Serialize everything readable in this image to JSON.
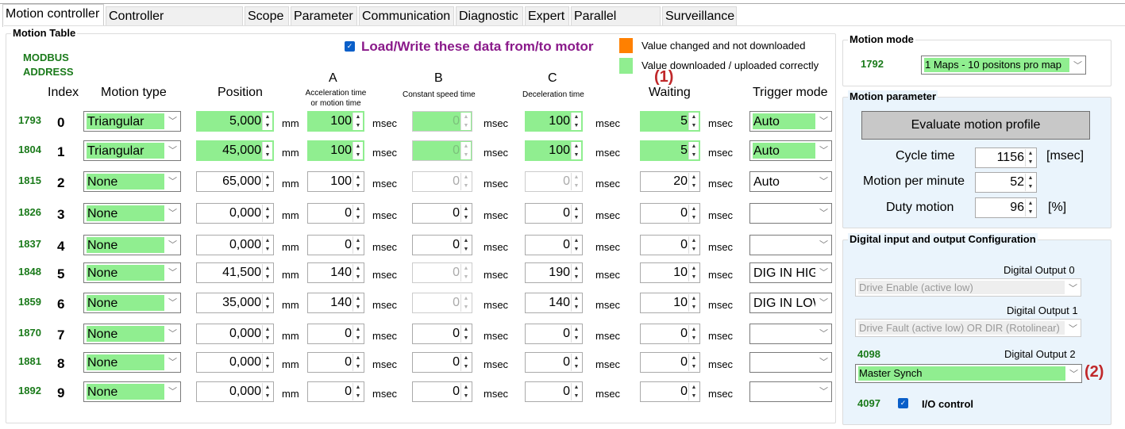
{
  "tabs": [
    "Motion controller",
    "Controller configuration",
    "Scope",
    "Parameter",
    "Communication",
    "Diagnostic",
    "Expert",
    "Parallel Motion",
    "Surveillance"
  ],
  "active_tab": "Motion controller",
  "motion_table": {
    "title": "Motion Table",
    "load_write_label": "Load/Write these data from/to motor",
    "load_write_checked": true,
    "legend": [
      {
        "color": "#ff8000",
        "label": "Value changed and not downloaded"
      },
      {
        "color": "#90ee90",
        "label": "Value downloaded / uploaded correctly"
      }
    ],
    "modbus_line1": "MODBUS",
    "modbus_line2": "ADDRESS",
    "headers": {
      "index": "Index",
      "motion_type": "Motion type",
      "position": "Position",
      "a": "A",
      "a_sub1": "Acceleration time",
      "a_sub2": "or motion time",
      "b": "B",
      "b_sub": "Constant speed time",
      "c": "C",
      "c_sub": "Deceleration time",
      "waiting": "Waiting",
      "trigger": "Trigger mode"
    },
    "annotation1": "(1)",
    "units": {
      "mm": "mm",
      "msec": "msec"
    },
    "rows": [
      {
        "addr": "1793",
        "index": "0",
        "type": "Triangular",
        "pos": "5,000",
        "a": "100",
        "b": "0",
        "c": "100",
        "w": "5",
        "trig": "Auto",
        "green": true,
        "b_dis": true,
        "c_dis": false
      },
      {
        "addr": "1804",
        "index": "1",
        "type": "Triangular",
        "pos": "45,000",
        "a": "100",
        "b": "0",
        "c": "100",
        "w": "5",
        "trig": "Auto",
        "green": true,
        "b_dis": true,
        "c_dis": false
      },
      {
        "addr": "1815",
        "index": "2",
        "type": "None",
        "pos": "65,000",
        "a": "100",
        "b": "0",
        "c": "0",
        "w": "20",
        "trig": "Auto",
        "green": false,
        "b_dis": true,
        "c_dis": true
      },
      {
        "addr": "1826",
        "index": "3",
        "type": "None",
        "pos": "0,000",
        "a": "0",
        "b": "0",
        "c": "0",
        "w": "0",
        "trig": "",
        "green": false,
        "b_dis": false,
        "c_dis": false
      },
      {
        "addr": "1837",
        "index": "4",
        "type": "None",
        "pos": "0,000",
        "a": "0",
        "b": "0",
        "c": "0",
        "w": "0",
        "trig": "",
        "green": false,
        "b_dis": false,
        "c_dis": false
      },
      {
        "addr": "1848",
        "index": "5",
        "type": "None",
        "pos": "41,500",
        "a": "140",
        "b": "0",
        "c": "190",
        "w": "10",
        "trig": "DIG IN HIGH",
        "green": false,
        "b_dis": true,
        "c_dis": false
      },
      {
        "addr": "1859",
        "index": "6",
        "type": "None",
        "pos": "35,000",
        "a": "140",
        "b": "0",
        "c": "140",
        "w": "10",
        "trig": "DIG IN LOW",
        "green": false,
        "b_dis": true,
        "c_dis": false
      },
      {
        "addr": "1870",
        "index": "7",
        "type": "None",
        "pos": "0,000",
        "a": "0",
        "b": "0",
        "c": "0",
        "w": "0",
        "trig": "",
        "green": false,
        "b_dis": false,
        "c_dis": false
      },
      {
        "addr": "1881",
        "index": "8",
        "type": "None",
        "pos": "0,000",
        "a": "0",
        "b": "0",
        "c": "0",
        "w": "0",
        "trig": "",
        "green": false,
        "b_dis": false,
        "c_dis": false
      },
      {
        "addr": "1892",
        "index": "9",
        "type": "None",
        "pos": "0,000",
        "a": "0",
        "b": "0",
        "c": "0",
        "w": "0",
        "trig": "",
        "green": false,
        "b_dis": false,
        "c_dis": false
      }
    ]
  },
  "motion_mode": {
    "title": "Motion mode",
    "addr": "1792",
    "value": "1 Maps - 10 positons pro map"
  },
  "motion_parameter": {
    "title": "Motion parameter",
    "evaluate_button": "Evaluate motion profile",
    "cycle_label": "Cycle time",
    "cycle_value": "1156",
    "cycle_unit": "[msec]",
    "mpm_label": "Motion per minute",
    "mpm_value": "52",
    "duty_label": "Duty motion",
    "duty_value": "96",
    "duty_unit": "[%]"
  },
  "dio": {
    "title": "Digital input and output Configuration",
    "out0_label": "Digital Output 0",
    "out0_value": "Drive Enable (active low)",
    "out1_label": "Digital Output 1",
    "out1_value": "Drive Fault (active low) OR DIR (Rotolinear)",
    "out2_addr": "4098",
    "out2_label": "Digital Output 2",
    "out2_value": "Master Synch",
    "annotation2": "(2)",
    "io_addr": "4097",
    "io_label": "I/O control",
    "io_checked": true
  }
}
